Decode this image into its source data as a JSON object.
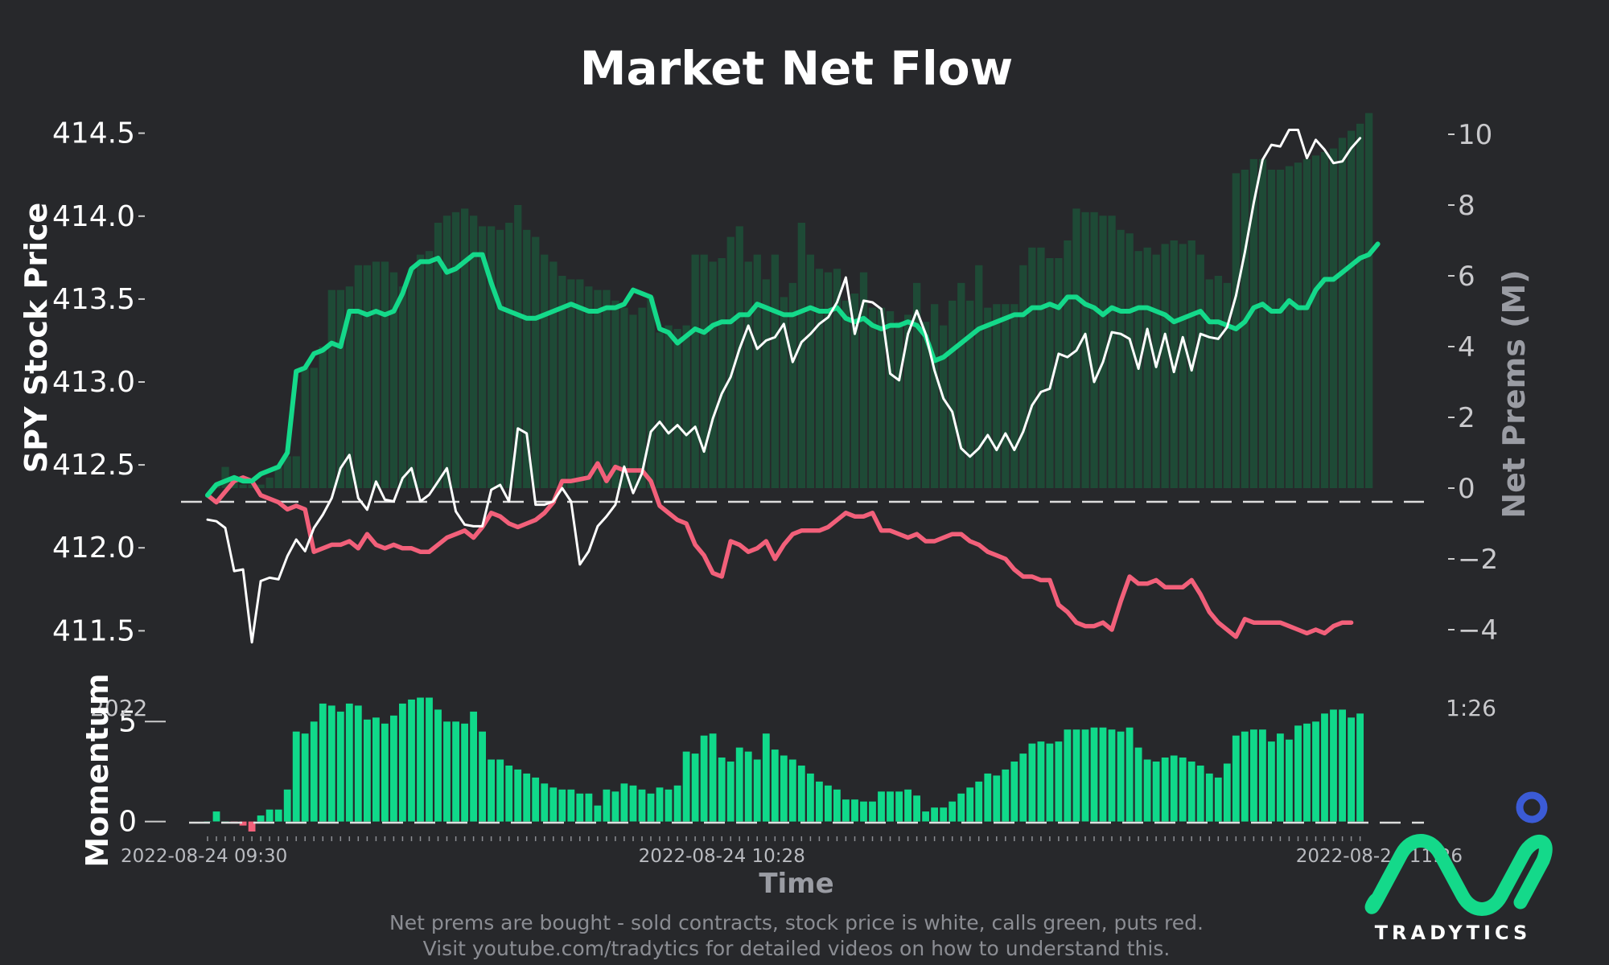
{
  "colors": {
    "background": "#27282b",
    "calls": "#14d98a",
    "puts": "#f2607a",
    "price": "#ffffff",
    "net_bars": "#1e4a36",
    "momentum_bars": "#10d98a",
    "momentum_negative": "#f2607a",
    "logo": "#14d98a",
    "logo_dot": "#3b5bd6"
  },
  "brand": {
    "name": "TRADYTICS"
  },
  "corner_labels": {
    "left": "2022",
    "right": "1:26"
  },
  "footnote": {
    "line1": "Net prems are bought - sold contracts, stock price is white, calls green, puts red.",
    "line2": "Visit youtube.com/tradytics for detailed videos on how to understand this."
  },
  "chart_data": [
    {
      "type": "line",
      "title": "Market Net Flow",
      "xlabel": "Time",
      "ylabel": "SPY Stock Price",
      "ylabel_right": "Net Prems (M)",
      "x_tick_labels": [
        "2022-08-24 09:30",
        "2022-08-24 10:28",
        "2022-08-24 11:26"
      ],
      "x_tick_indices": [
        0,
        58,
        116
      ],
      "ylim": [
        411.4,
        414.6
      ],
      "y_ticks": [
        411.5,
        412.0,
        412.5,
        413.0,
        413.5,
        414.0,
        414.5
      ],
      "ylim_right": [
        -4.5,
        10.5
      ],
      "y_ticks_right": [
        -4,
        -2,
        0,
        2,
        4,
        6,
        8,
        10
      ],
      "zero_line": true,
      "series": [
        {
          "name": "SPY price",
          "axis": "left",
          "values": [
            412.17,
            412.16,
            412.12,
            411.86,
            411.87,
            411.43,
            411.8,
            411.82,
            411.81,
            411.95,
            412.05,
            411.98,
            412.12,
            412.2,
            412.3,
            412.48,
            412.56,
            412.3,
            412.23,
            412.4,
            412.29,
            412.28,
            412.42,
            412.48,
            412.28,
            412.32,
            412.4,
            412.48,
            412.22,
            412.14,
            412.13,
            412.13,
            412.35,
            412.38,
            412.28,
            412.72,
            412.69,
            412.26,
            412.26,
            412.28,
            412.36,
            412.28,
            411.9,
            411.98,
            412.13,
            412.19,
            412.26,
            412.49,
            412.33,
            412.45,
            412.7,
            412.76,
            412.69,
            412.74,
            412.68,
            412.73,
            412.58,
            412.78,
            412.93,
            413.03,
            413.2,
            413.34,
            413.2,
            413.25,
            413.27,
            413.35,
            413.12,
            413.24,
            413.29,
            413.35,
            413.39,
            413.48,
            413.63,
            413.29,
            413.49,
            413.48,
            413.44,
            413.05,
            413.01,
            413.29,
            413.43,
            413.29,
            413.07,
            412.9,
            412.82,
            412.6,
            412.55,
            412.6,
            412.68,
            412.59,
            412.69,
            412.59,
            412.7,
            412.86,
            412.94,
            412.96,
            413.17,
            413.15,
            413.19,
            413.29,
            413.0,
            413.12,
            413.3,
            413.29,
            413.26,
            413.08,
            413.32,
            413.09,
            413.29,
            413.06,
            413.27,
            413.07,
            413.29,
            413.27,
            413.26,
            413.33,
            413.52,
            413.78,
            414.08,
            414.34,
            414.43,
            414.42,
            414.52,
            414.52,
            414.35,
            414.46,
            414.4,
            414.32,
            414.33,
            414.41,
            414.47
          ]
        },
        {
          "name": "calls",
          "axis": "right",
          "values": [
            -0.2,
            0.1,
            0.2,
            0.3,
            0.2,
            0.2,
            0.4,
            0.5,
            0.6,
            1.0,
            3.3,
            3.4,
            3.8,
            3.9,
            4.1,
            4.0,
            5.0,
            5.0,
            4.9,
            5.0,
            4.9,
            5.0,
            5.5,
            6.2,
            6.4,
            6.4,
            6.5,
            6.1,
            6.2,
            6.4,
            6.6,
            6.6,
            5.8,
            5.1,
            5.0,
            4.9,
            4.8,
            4.8,
            4.9,
            5.0,
            5.1,
            5.2,
            5.1,
            5.0,
            5.0,
            5.1,
            5.1,
            5.2,
            5.6,
            5.5,
            5.4,
            4.5,
            4.4,
            4.1,
            4.3,
            4.5,
            4.4,
            4.6,
            4.7,
            4.7,
            4.9,
            4.9,
            5.2,
            5.1,
            5.0,
            4.9,
            4.9,
            5.0,
            5.1,
            5.0,
            5.0,
            5.1,
            4.8,
            4.7,
            4.8,
            4.6,
            4.5,
            4.6,
            4.6,
            4.7,
            4.6,
            4.3,
            3.6,
            3.7,
            3.9,
            4.1,
            4.3,
            4.5,
            4.6,
            4.7,
            4.8,
            4.9,
            4.9,
            5.1,
            5.1,
            5.2,
            5.1,
            5.4,
            5.4,
            5.2,
            5.1,
            4.9,
            5.1,
            5.0,
            5.0,
            5.1,
            5.1,
            5.0,
            4.9,
            4.7,
            4.8,
            4.9,
            5.0,
            4.7,
            4.7,
            4.6,
            4.5,
            4.7,
            5.1,
            5.2,
            5.0,
            5.0,
            5.3,
            5.1,
            5.1,
            5.6,
            5.9,
            5.9,
            6.1,
            6.3,
            6.5,
            6.6,
            6.9
          ]
        },
        {
          "name": "puts",
          "axis": "right",
          "values": [
            -0.2,
            -0.4,
            -0.1,
            0.2,
            0.3,
            0.2,
            -0.2,
            -0.3,
            -0.4,
            -0.6,
            -0.5,
            -0.6,
            -1.8,
            -1.7,
            -1.6,
            -1.6,
            -1.5,
            -1.7,
            -1.3,
            -1.6,
            -1.7,
            -1.6,
            -1.7,
            -1.7,
            -1.8,
            -1.8,
            -1.6,
            -1.4,
            -1.3,
            -1.2,
            -1.4,
            -1.1,
            -0.7,
            -0.8,
            -1.0,
            -1.1,
            -1.0,
            -0.9,
            -0.7,
            -0.4,
            0.2,
            0.2,
            0.25,
            0.3,
            0.7,
            0.2,
            0.6,
            0.5,
            0.5,
            0.5,
            0.2,
            -0.5,
            -0.7,
            -0.9,
            -1.0,
            -1.6,
            -1.9,
            -2.4,
            -2.5,
            -1.5,
            -1.6,
            -1.8,
            -1.7,
            -1.5,
            -2.0,
            -1.6,
            -1.3,
            -1.2,
            -1.2,
            -1.2,
            -1.1,
            -0.9,
            -0.7,
            -0.8,
            -0.8,
            -0.7,
            -1.2,
            -1.2,
            -1.3,
            -1.4,
            -1.3,
            -1.5,
            -1.5,
            -1.4,
            -1.3,
            -1.3,
            -1.5,
            -1.6,
            -1.8,
            -1.9,
            -2.0,
            -2.3,
            -2.5,
            -2.5,
            -2.6,
            -2.6,
            -3.3,
            -3.5,
            -3.8,
            -3.9,
            -3.9,
            -3.8,
            -4.0,
            -3.2,
            -2.5,
            -2.7,
            -2.7,
            -2.6,
            -2.8,
            -2.8,
            -2.8,
            -2.6,
            -3.0,
            -3.5,
            -3.8,
            -4.0,
            -4.2,
            -3.7,
            -3.8,
            -3.8,
            -3.8,
            -3.8,
            -3.9,
            -4.0,
            -4.1,
            -4.0,
            -4.1,
            -3.9,
            -3.8,
            -3.8
          ]
        },
        {
          "name": "net prems",
          "axis": "right",
          "type": "bar",
          "values": [
            0,
            0.1,
            0.6,
            0.3,
            0.1,
            0.1,
            0.1,
            0.3,
            0.6,
            0.9,
            0.9,
            3.4,
            3.4,
            4.0,
            5.6,
            5.6,
            5.7,
            6.3,
            6.3,
            6.4,
            6.4,
            6.1,
            5.7,
            6.2,
            6.6,
            6.7,
            7.5,
            7.7,
            7.8,
            7.9,
            7.7,
            7.4,
            7.4,
            7.3,
            7.5,
            8.0,
            7.3,
            7.1,
            6.6,
            6.4,
            6.0,
            5.9,
            5.9,
            5.7,
            5.6,
            5.6,
            5.3,
            5.1,
            4.9,
            5.1,
            5.4,
            4.4,
            4.6,
            4.5,
            4.6,
            6.6,
            6.6,
            6.4,
            6.5,
            7.1,
            7.4,
            6.4,
            6.6,
            5.9,
            6.6,
            5.4,
            5.8,
            7.5,
            6.6,
            6.2,
            6.1,
            6.2,
            5.3,
            5.5,
            6.1,
            5.1,
            5.1,
            5.0,
            4.7,
            4.9,
            5.8,
            4.7,
            5.2,
            4.6,
            5.3,
            5.8,
            5.3,
            6.3,
            5.1,
            5.2,
            5.2,
            5.2,
            6.3,
            6.8,
            6.8,
            6.5,
            6.5,
            7.0,
            7.9,
            7.8,
            7.8,
            7.7,
            7.7,
            7.3,
            7.2,
            6.7,
            6.8,
            6.6,
            6.9,
            7.0,
            6.9,
            7.0,
            6.6,
            5.9,
            6.0,
            5.8,
            8.9,
            9.0,
            9.3,
            9.3,
            9.0,
            9.0,
            9.1,
            9.2,
            9.3,
            9.4,
            9.5,
            9.6,
            9.9,
            10.1,
            10.3,
            10.6
          ]
        }
      ]
    },
    {
      "type": "bar",
      "ylabel": "Momentum",
      "ylim": [
        -0.5,
        6.5
      ],
      "y_ticks": [
        0,
        5
      ],
      "series": [
        {
          "name": "Momentum",
          "values": [
            0,
            0.5,
            0,
            -0.1,
            -0.2,
            -0.5,
            0.3,
            0.6,
            0.6,
            1.6,
            4.5,
            4.4,
            5.0,
            5.9,
            5.8,
            5.5,
            5.9,
            5.8,
            5.1,
            5.2,
            4.9,
            5.3,
            5.9,
            6.1,
            6.2,
            6.2,
            5.6,
            5.0,
            5.0,
            4.9,
            5.5,
            4.5,
            3.1,
            3.1,
            2.8,
            2.6,
            2.4,
            2.2,
            1.9,
            1.7,
            1.6,
            1.6,
            1.4,
            1.4,
            0.8,
            1.6,
            1.5,
            1.9,
            1.8,
            1.6,
            1.4,
            1.7,
            1.6,
            1.8,
            3.5,
            3.4,
            4.3,
            4.4,
            3.2,
            3.0,
            3.7,
            3.5,
            3.1,
            4.4,
            3.6,
            3.3,
            3.1,
            2.8,
            2.4,
            2.0,
            1.8,
            1.6,
            1.1,
            1.1,
            1.0,
            1.0,
            1.5,
            1.5,
            1.5,
            1.6,
            1.3,
            0.5,
            0.7,
            0.7,
            1.0,
            1.4,
            1.7,
            2.0,
            2.4,
            2.3,
            2.6,
            3.0,
            3.4,
            3.9,
            4.0,
            3.9,
            4.0,
            4.6,
            4.6,
            4.6,
            4.7,
            4.7,
            4.6,
            4.5,
            4.7,
            3.7,
            3.1,
            3.0,
            3.2,
            3.3,
            3.2,
            3.0,
            2.8,
            2.4,
            2.2,
            2.9,
            4.3,
            4.5,
            4.6,
            4.6,
            4.0,
            4.4,
            4.1,
            4.8,
            4.9,
            5.0,
            5.4,
            5.6,
            5.6,
            5.2,
            5.4
          ]
        }
      ]
    }
  ]
}
